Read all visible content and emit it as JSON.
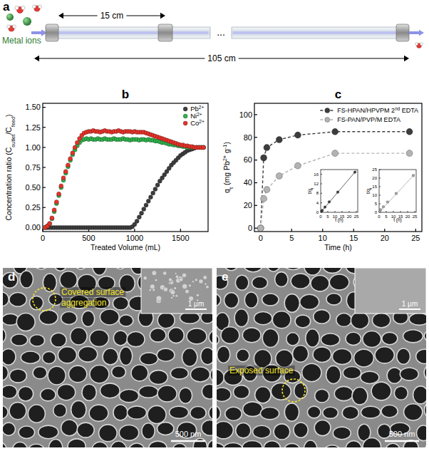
{
  "panel_a": {
    "letter": "a",
    "inlet_label": "Metal ions",
    "segment_length": "15 cm",
    "total_length": "105 cm",
    "ellipsis": "..."
  },
  "chart_data": [
    {
      "letter": "b",
      "type": "scatter",
      "marker": "circle",
      "xlabel": "Treated Volume (mL)",
      "ylabel_parts": [
        {
          "text": "Concentration ratio (C"
        },
        {
          "text": "outlet",
          "sub": true
        },
        {
          "text": "/C"
        },
        {
          "text": "feed",
          "sub": true
        },
        {
          "text": ")"
        }
      ],
      "x": [
        25,
        50,
        75,
        100,
        125,
        150,
        175,
        200,
        225,
        250,
        275,
        300,
        325,
        350,
        375,
        400,
        425,
        450,
        475,
        500,
        525,
        550,
        575,
        600,
        625,
        650,
        675,
        700,
        725,
        750,
        775,
        800,
        825,
        850,
        875,
        900,
        925,
        950,
        975,
        1000,
        1025,
        1050,
        1075,
        1100,
        1125,
        1150,
        1175,
        1200,
        1225,
        1250,
        1275,
        1300,
        1325,
        1350,
        1375,
        1400,
        1425,
        1450,
        1475,
        1500,
        1525,
        1550,
        1575,
        1600,
        1625,
        1650,
        1675,
        1700,
        1725,
        1750
      ],
      "series": [
        {
          "name": "Pb2+",
          "color": "#3d3d3d",
          "values": [
            0,
            0,
            0,
            0,
            0,
            0,
            0,
            0,
            0,
            0,
            0,
            0,
            0,
            0,
            0,
            0,
            0,
            0,
            0,
            0,
            0,
            0,
            0,
            0,
            0,
            0,
            0,
            0,
            0,
            0,
            0,
            0,
            0,
            0,
            0,
            0,
            0,
            0,
            0.01,
            0.04,
            0.08,
            0.13,
            0.18,
            0.23,
            0.28,
            0.33,
            0.38,
            0.43,
            0.48,
            0.53,
            0.58,
            0.62,
            0.66,
            0.7,
            0.74,
            0.78,
            0.81,
            0.84,
            0.87,
            0.9,
            0.92,
            0.94,
            0.96,
            0.97,
            0.98,
            0.99,
            1.0,
            1.0,
            1.0,
            1.0
          ]
        },
        {
          "name": "Ni2+",
          "color": "#2fb24c",
          "values": [
            0,
            0.02,
            0.05,
            0.11,
            0.2,
            0.3,
            0.4,
            0.5,
            0.59,
            0.68,
            0.76,
            0.84,
            0.91,
            0.97,
            1.02,
            1.06,
            1.09,
            1.1,
            1.11,
            1.1,
            1.11,
            1.1,
            1.1,
            1.11,
            1.1,
            1.1,
            1.11,
            1.1,
            1.1,
            1.1,
            1.11,
            1.1,
            1.1,
            1.1,
            1.11,
            1.1,
            1.1,
            1.09,
            1.1,
            1.1,
            1.1,
            1.09,
            1.1,
            1.1,
            1.09,
            1.1,
            1.09,
            1.09,
            1.08,
            1.08,
            1.07,
            1.06,
            1.06,
            1.05,
            1.04,
            1.04,
            1.03,
            1.03,
            1.02,
            1.02,
            1.01,
            1.01,
            1.0,
            1.0,
            1.0,
            1.0,
            1.0,
            1.0,
            1.0,
            1.0
          ]
        },
        {
          "name": "Co2+",
          "color": "#e6332a",
          "values": [
            0,
            0.02,
            0.05,
            0.12,
            0.22,
            0.32,
            0.42,
            0.52,
            0.62,
            0.7,
            0.78,
            0.86,
            0.93,
            1.0,
            1.06,
            1.11,
            1.15,
            1.18,
            1.19,
            1.2,
            1.2,
            1.21,
            1.2,
            1.2,
            1.19,
            1.2,
            1.21,
            1.2,
            1.2,
            1.19,
            1.2,
            1.2,
            1.21,
            1.2,
            1.19,
            1.2,
            1.2,
            1.2,
            1.19,
            1.2,
            1.19,
            1.19,
            1.19,
            1.19,
            1.18,
            1.17,
            1.16,
            1.15,
            1.14,
            1.13,
            1.12,
            1.11,
            1.1,
            1.09,
            1.08,
            1.07,
            1.06,
            1.05,
            1.04,
            1.03,
            1.03,
            1.02,
            1.02,
            1.01,
            1.01,
            1.0,
            1.0,
            1.0,
            1.0,
            1.0
          ]
        }
      ],
      "xlim": [
        0,
        1800
      ],
      "xticks": [
        0,
        500,
        1000,
        1500
      ],
      "ylim": [
        -0.05,
        1.55
      ],
      "yticks": [
        {
          "value": 0,
          "label": "0.00"
        },
        {
          "value": 0.25,
          "label": "0.25"
        },
        {
          "value": 0.5,
          "label": "0.50"
        },
        {
          "value": 0.75,
          "label": "0.75"
        },
        {
          "value": 1,
          "label": "1.00"
        },
        {
          "value": 1.25,
          "label": "1.25"
        },
        {
          "value": 1.5,
          "label": "1.50"
        }
      ],
      "legend": "upper right"
    },
    {
      "letter": "c",
      "type": "line",
      "marker": "circle",
      "line_style": "dashed",
      "xlabel": "Time (h)",
      "ylabel_parts": [
        {
          "text": "q"
        },
        {
          "text": "t",
          "sub": true
        },
        {
          "text": " (mg Pb"
        },
        {
          "text": "2+",
          "sup": true
        },
        {
          "text": " g"
        },
        {
          "text": "-1",
          "sup": true
        },
        {
          "text": ")"
        }
      ],
      "x": [
        0,
        0.5,
        1,
        3,
        6,
        12,
        24
      ],
      "series": [
        {
          "name": "FS-HPAN/HPVPM 2nd EDTA",
          "color": "#3d3d3d",
          "values": [
            0,
            62,
            71,
            78,
            82,
            85,
            85
          ]
        },
        {
          "name": "FS-PAN/PVP/M EDTA",
          "color": "#b3b3b3",
          "values": [
            0,
            26,
            34,
            46,
            55,
            66,
            66
          ]
        }
      ],
      "xlim": [
        -1,
        26
      ],
      "xticks": [
        0,
        5,
        10,
        15,
        20,
        25
      ],
      "ylim": [
        -3,
        110
      ],
      "yticks": [
        0,
        20,
        40,
        60,
        80,
        100
      ],
      "legend": "upper right"
    },
    {
      "type": "scatter",
      "marker": "circle",
      "xlabel": "t (h)",
      "ylabel_parts": [
        {
          "text": "t/q"
        },
        {
          "text": "t",
          "sub": true
        }
      ],
      "x": [
        0.5,
        1,
        3,
        6,
        12,
        24
      ],
      "series": [
        {
          "color": "#3d3d3d",
          "values": [
            0.4,
            0.8,
            2.2,
            4.4,
            8.5,
            16.9
          ]
        },
        {
          "type": "line",
          "marker": "none",
          "color": "#3d3d3d",
          "x": [
            0,
            25
          ],
          "values": [
            0,
            17.6
          ]
        }
      ],
      "xlim": [
        0,
        26
      ],
      "xticks": [
        0,
        5,
        10,
        15,
        20,
        25
      ],
      "ylim": [
        0,
        18
      ],
      "yticks": [
        0,
        4,
        8,
        12,
        16
      ]
    },
    {
      "type": "scatter",
      "marker": "circle",
      "xlabel": "t (h)",
      "ylabel_parts": [
        {
          "text": "t/q"
        },
        {
          "text": "t",
          "sub": true
        }
      ],
      "x": [
        0.5,
        1,
        3,
        6,
        12,
        24
      ],
      "series": [
        {
          "color": "#a6a6a6",
          "values": [
            0.8,
            1.5,
            3.2,
            6.0,
            11.0,
            21.5
          ]
        },
        {
          "type": "line",
          "marker": "none",
          "color": "#a6a6a6",
          "x": [
            0,
            25
          ],
          "values": [
            0,
            22.4
          ]
        }
      ],
      "xlim": [
        0,
        26
      ],
      "xticks": [
        0,
        5,
        10,
        15,
        20,
        25
      ],
      "ylim": [
        0,
        25
      ],
      "yticks": [
        0,
        5,
        10,
        15,
        20,
        25
      ]
    }
  ],
  "images": [
    {
      "letter": "d",
      "annotation": [
        "Covered surface",
        "aggregation"
      ],
      "scale_bar": "500 nm",
      "inset_scale_bar": "1 μm"
    },
    {
      "letter": "e",
      "annotation": [
        "Exposed surface"
      ],
      "scale_bar": "500 nm",
      "inset_scale_bar": "1 μm"
    }
  ]
}
